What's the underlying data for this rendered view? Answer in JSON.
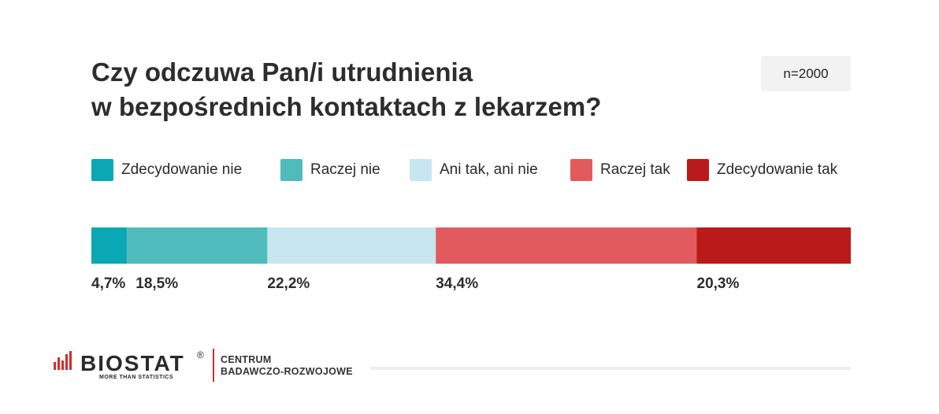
{
  "title_lines": [
    "Czy odczuwa Pan/i utrudnienia",
    "w bezpośrednich kontaktach z lekarzem?"
  ],
  "sample_label": "n=2000",
  "chart_data": {
    "type": "bar",
    "orientation": "horizontal-stacked-100",
    "title": "Czy odczuwa Pan/i utrudnienia w bezpośrednich kontaktach z lekarzem?",
    "categories": [
      "Zdecydowanie nie",
      "Raczej nie",
      "Ani tak, ani nie",
      "Raczej tak",
      "Zdecydowanie tak"
    ],
    "values": [
      4.7,
      18.5,
      22.2,
      34.4,
      20.3
    ],
    "value_labels": [
      "4,7%",
      "18,5%",
      "22,2%",
      "34,4%",
      "20,3%"
    ],
    "colors": [
      "#0aa8b4",
      "#50bbbd",
      "#c8e6ef",
      "#e25a5d",
      "#ba1a1a"
    ],
    "legend_position": "top",
    "grid": false,
    "xlim": [
      0,
      100
    ]
  },
  "footer": {
    "logo_text": "BIOSTAT",
    "logo_reg": "®",
    "logo_tagline": "MORE THAN STATISTICS",
    "center_lines": [
      "CENTRUM",
      "BADAWCZO-ROZWOJOWE"
    ]
  }
}
